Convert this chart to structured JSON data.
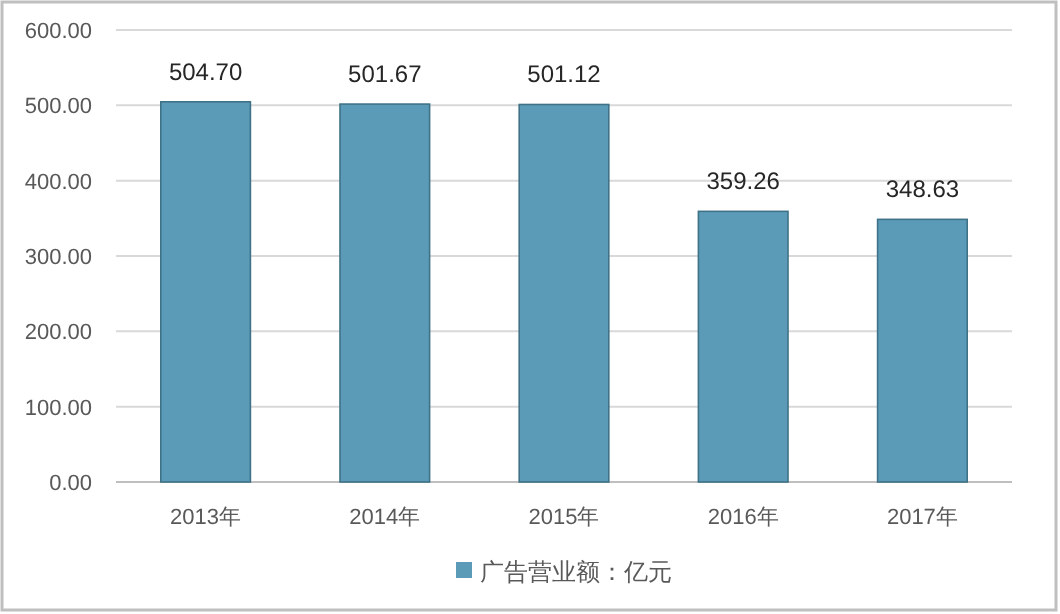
{
  "chart_data": {
    "type": "bar",
    "categories": [
      "2013年",
      "2014年",
      "2015年",
      "2016年",
      "2017年"
    ],
    "series": [
      {
        "name": "广告营业额：亿元",
        "color": "#5b9bb8",
        "values": [
          504.7,
          501.67,
          501.12,
          359.26,
          348.63
        ],
        "value_labels": [
          "504.70",
          "501.67",
          "501.12",
          "359.26",
          "348.63"
        ]
      }
    ],
    "ylim": [
      0,
      600
    ],
    "yticks": [
      {
        "value": 0,
        "label": "0.00"
      },
      {
        "value": 100,
        "label": "100.00"
      },
      {
        "value": 200,
        "label": "200.00"
      },
      {
        "value": 300,
        "label": "300.00"
      },
      {
        "value": 400,
        "label": "400.00"
      },
      {
        "value": 500,
        "label": "500.00"
      },
      {
        "value": 600,
        "label": "600.00"
      }
    ],
    "grid": "y",
    "legend": "bottom"
  }
}
